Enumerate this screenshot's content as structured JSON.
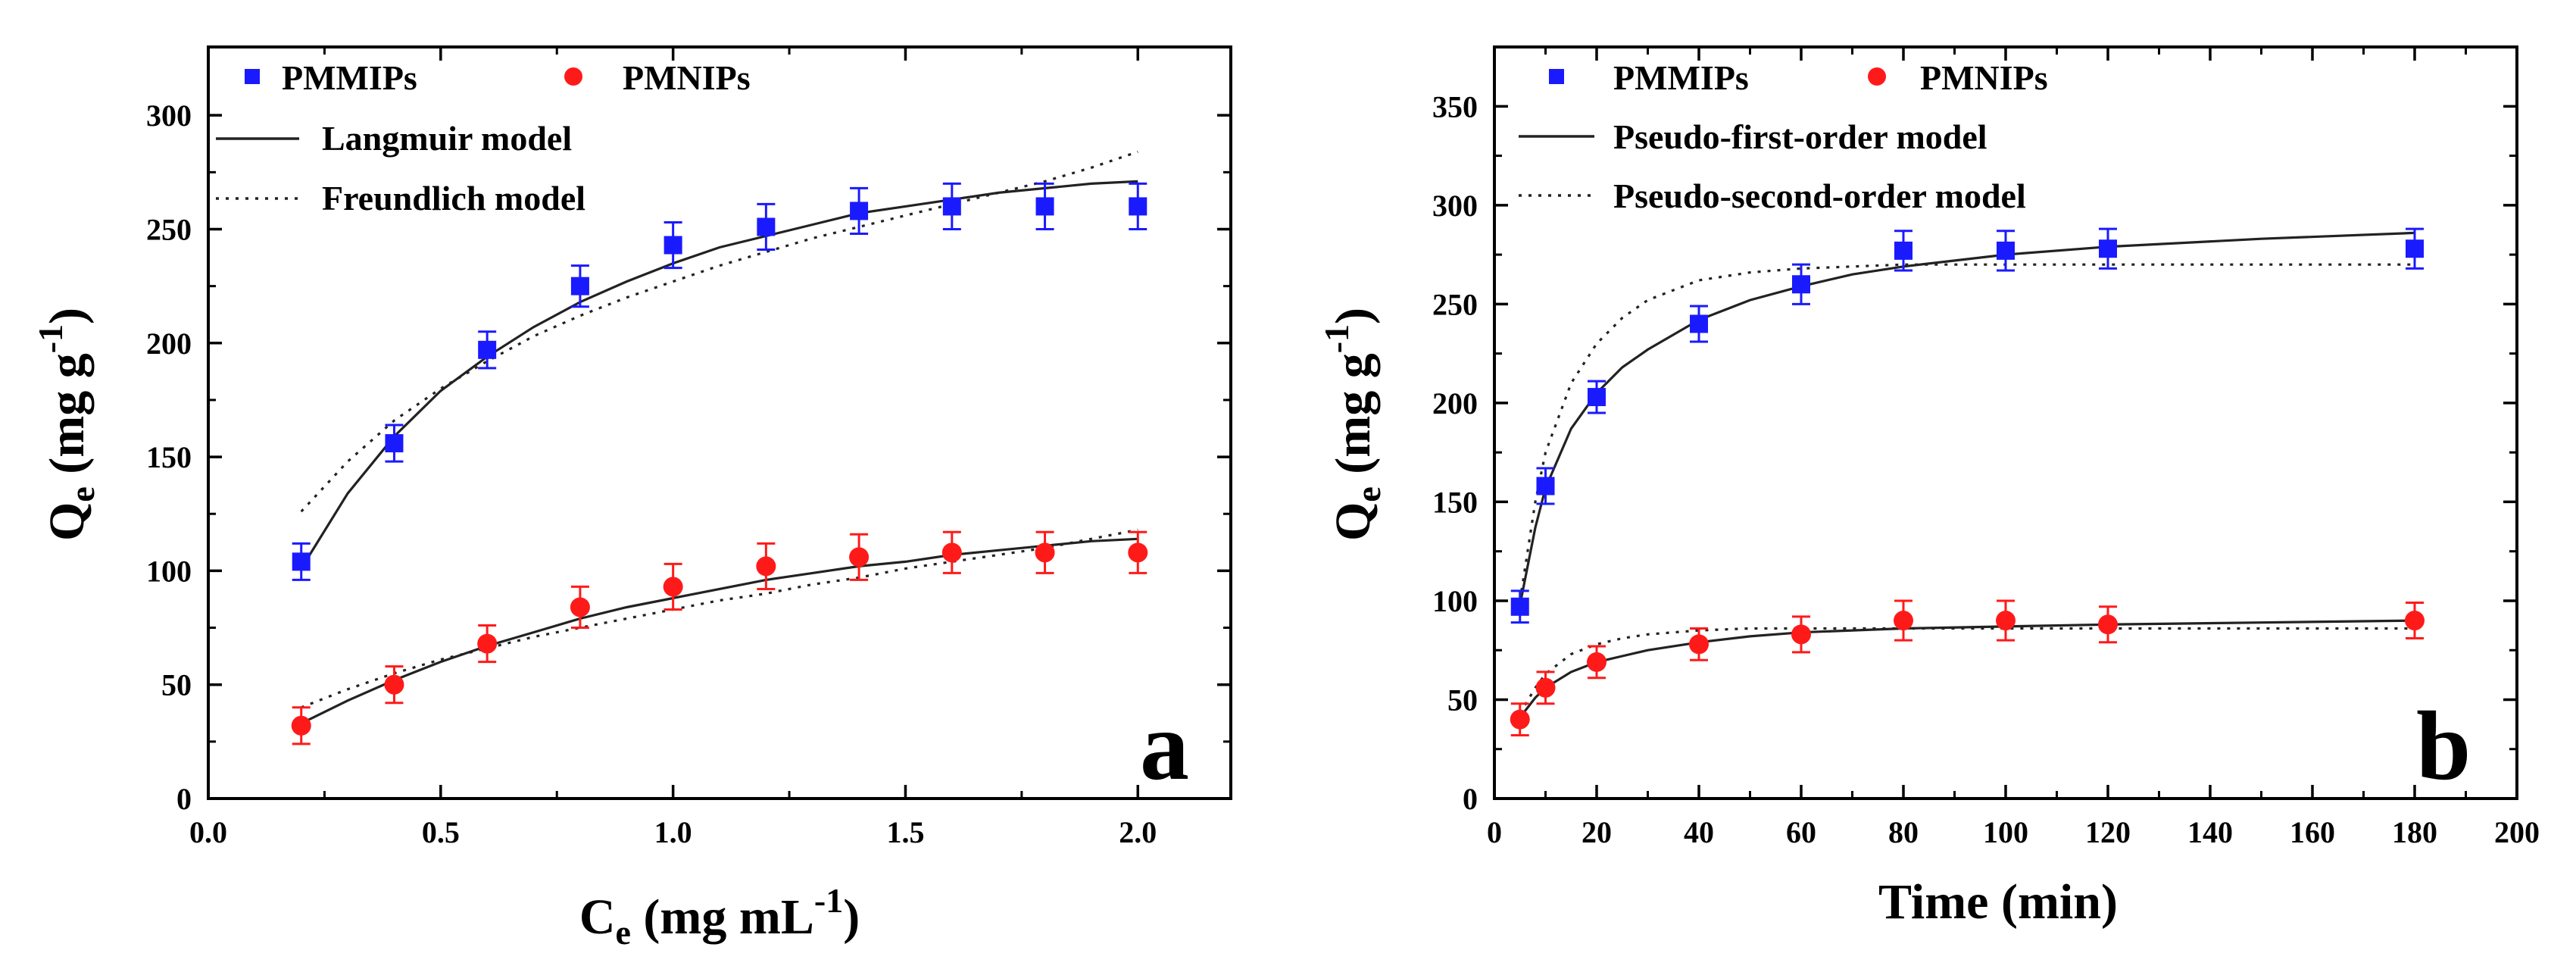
{
  "chart_data": [
    {
      "id": "a",
      "type": "scatter",
      "panel_label": "a",
      "xlabel": {
        "main": "C",
        "sub": "e",
        "rest": " (mg mL",
        "sup": "-1",
        "end": ")"
      },
      "ylabel": {
        "main": "Q",
        "sub": "e",
        "rest": " (mg g",
        "sup": "-1",
        "end": ")"
      },
      "xlim": [
        0,
        2.2
      ],
      "ylim": [
        0,
        330
      ],
      "xticks": [
        0.0,
        0.5,
        1.0,
        1.5,
        2.0
      ],
      "xtick_labels": [
        "0.0",
        "0.5",
        "1.0",
        "1.5",
        "2.0"
      ],
      "yticks": [
        0,
        50,
        100,
        150,
        200,
        250,
        300
      ],
      "ytick_labels": [
        "0",
        "50",
        "100",
        "150",
        "200",
        "250",
        "300"
      ],
      "legend": {
        "series_labels": [
          "PMMIPs",
          "PMNIPs"
        ],
        "model_labels": [
          "Langmuir model",
          "Freundlich model"
        ]
      },
      "series": [
        {
          "name": "PMMIPs",
          "marker": "square",
          "color": "#1a1aff",
          "x": [
            0.2,
            0.4,
            0.6,
            0.8,
            1.0,
            1.2,
            1.4,
            1.6,
            1.8,
            2.0
          ],
          "y": [
            104,
            156,
            197,
            225,
            243,
            251,
            258,
            260,
            260,
            260
          ],
          "err": [
            8,
            8,
            8,
            9,
            10,
            10,
            10,
            10,
            10,
            10
          ]
        },
        {
          "name": "PMNIPs",
          "marker": "circle",
          "color": "#ff1a1a",
          "x": [
            0.2,
            0.4,
            0.6,
            0.8,
            1.0,
            1.2,
            1.4,
            1.6,
            1.8,
            2.0
          ],
          "y": [
            32,
            50,
            68,
            84,
            93,
            102,
            106,
            108,
            108,
            108
          ],
          "err": [
            8,
            8,
            8,
            9,
            10,
            10,
            10,
            9,
            9,
            9
          ]
        }
      ],
      "fits": [
        {
          "series": "PMMIPs",
          "model": "Langmuir model",
          "style": "solid",
          "x": [
            0.2,
            0.3,
            0.4,
            0.5,
            0.6,
            0.7,
            0.8,
            0.9,
            1.0,
            1.1,
            1.2,
            1.3,
            1.4,
            1.5,
            1.6,
            1.7,
            1.8,
            1.9,
            2.0
          ],
          "y": [
            101,
            134,
            159,
            179,
            194,
            207,
            218,
            227,
            235,
            242,
            247,
            252,
            257,
            260,
            263,
            266,
            268,
            270,
            271
          ]
        },
        {
          "series": "PMMIPs",
          "model": "Freundlich model",
          "style": "dotted",
          "x": [
            0.2,
            0.3,
            0.4,
            0.5,
            0.6,
            0.7,
            0.8,
            0.9,
            1.0,
            1.1,
            1.2,
            1.3,
            1.4,
            1.5,
            1.6,
            1.7,
            1.8,
            1.9,
            2.0
          ],
          "y": [
            126,
            148,
            166,
            180,
            192,
            203,
            212,
            220,
            227,
            234,
            240,
            246,
            251,
            256,
            261,
            266,
            271,
            277,
            284
          ]
        },
        {
          "series": "PMNIPs",
          "model": "Langmuir model",
          "style": "solid",
          "x": [
            0.2,
            0.3,
            0.4,
            0.5,
            0.6,
            0.7,
            0.8,
            0.9,
            1.0,
            1.1,
            1.2,
            1.3,
            1.4,
            1.5,
            1.6,
            1.7,
            1.8,
            1.9,
            2.0
          ],
          "y": [
            33,
            43,
            52,
            60,
            67,
            73,
            79,
            84,
            88,
            92,
            96,
            99,
            102,
            104,
            107,
            109,
            111,
            113,
            114
          ]
        },
        {
          "series": "PMNIPs",
          "model": "Freundlich model",
          "style": "dotted",
          "x": [
            0.2,
            0.3,
            0.4,
            0.5,
            0.6,
            0.7,
            0.8,
            0.9,
            1.0,
            1.1,
            1.2,
            1.3,
            1.4,
            1.5,
            1.6,
            1.7,
            1.8,
            1.9,
            2.0
          ],
          "y": [
            40,
            48,
            55,
            61,
            66,
            71,
            75,
            79,
            83,
            87,
            90,
            94,
            97,
            101,
            104,
            107,
            110,
            114,
            118
          ]
        }
      ]
    },
    {
      "id": "b",
      "type": "scatter",
      "panel_label": "b",
      "xlabel": {
        "main": "Time (min)",
        "sub": "",
        "rest": "",
        "sup": "",
        "end": ""
      },
      "ylabel": {
        "main": "Q",
        "sub": "e",
        "rest": " (mg g",
        "sup": "-1",
        "end": ")"
      },
      "xlim": [
        0,
        200
      ],
      "ylim": [
        0,
        380
      ],
      "xticks": [
        0,
        20,
        40,
        60,
        80,
        100,
        120,
        140,
        160,
        180,
        200
      ],
      "xtick_labels": [
        "0",
        "20",
        "40",
        "60",
        "80",
        "100",
        "120",
        "140",
        "160",
        "180",
        "200"
      ],
      "yticks": [
        0,
        50,
        100,
        150,
        200,
        250,
        300,
        350
      ],
      "ytick_labels": [
        "0",
        "50",
        "100",
        "150",
        "200",
        "250",
        "300",
        "350"
      ],
      "legend": {
        "series_labels": [
          "PMMIPs",
          "PMNIPs"
        ],
        "model_labels": [
          "Pseudo-first-order model",
          "Pseudo-second-order model"
        ]
      },
      "series": [
        {
          "name": "PMMIPs",
          "marker": "square",
          "color": "#1a1aff",
          "x": [
            5,
            10,
            20,
            40,
            60,
            80,
            100,
            120,
            180
          ],
          "y": [
            97,
            158,
            203,
            240,
            260,
            277,
            277,
            278,
            278
          ],
          "err": [
            8,
            9,
            8,
            9,
            10,
            10,
            10,
            10,
            10
          ]
        },
        {
          "name": "PMNIPs",
          "marker": "circle",
          "color": "#ff1a1a",
          "x": [
            5,
            10,
            20,
            40,
            60,
            80,
            100,
            120,
            180
          ],
          "y": [
            40,
            56,
            69,
            78,
            83,
            90,
            90,
            88,
            90
          ],
          "err": [
            8,
            8,
            8,
            8,
            9,
            10,
            10,
            9,
            9
          ]
        }
      ],
      "fits": [
        {
          "series": "PMMIPs",
          "model": "Pseudo-first-order model",
          "style": "solid",
          "x": [
            5,
            8,
            10,
            15,
            20,
            25,
            30,
            40,
            50,
            60,
            70,
            80,
            100,
            120,
            150,
            180
          ],
          "y": [
            98,
            137,
            157,
            187,
            205,
            218,
            227,
            242,
            252,
            259,
            265,
            269,
            275,
            279,
            283,
            286
          ]
        },
        {
          "series": "PMMIPs",
          "model": "Pseudo-second-order model",
          "style": "dotted",
          "x": [
            5,
            8,
            10,
            15,
            20,
            25,
            30,
            40,
            50,
            60,
            70,
            80,
            100,
            120,
            150,
            180
          ],
          "y": [
            100,
            150,
            175,
            210,
            230,
            243,
            252,
            262,
            266,
            268,
            269,
            270,
            270,
            270,
            270,
            270
          ]
        },
        {
          "series": "PMNIPs",
          "model": "Pseudo-first-order model",
          "style": "solid",
          "x": [
            5,
            8,
            10,
            15,
            20,
            25,
            30,
            40,
            50,
            60,
            70,
            80,
            100,
            120,
            150,
            180
          ],
          "y": [
            41,
            51,
            56,
            64,
            69,
            72,
            75,
            79,
            82,
            84,
            85,
            86,
            87,
            88,
            89,
            90
          ]
        },
        {
          "series": "PMNIPs",
          "model": "Pseudo-second-order model",
          "style": "dotted",
          "x": [
            5,
            8,
            10,
            15,
            20,
            25,
            30,
            40,
            50,
            60,
            70,
            80,
            100,
            120,
            150,
            180
          ],
          "y": [
            43,
            56,
            63,
            73,
            78,
            81,
            83,
            85,
            86,
            86,
            86,
            86,
            86,
            86,
            86,
            86
          ]
        }
      ]
    }
  ]
}
